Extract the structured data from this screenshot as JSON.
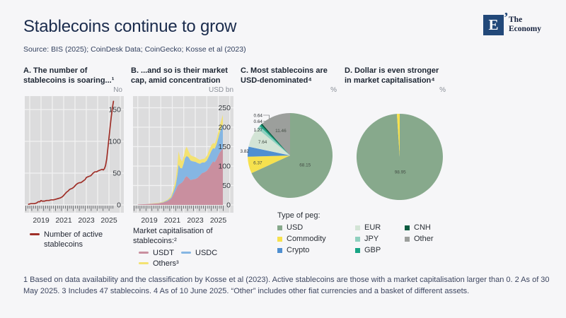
{
  "slide": {
    "title": "Stablecoins continue to grow",
    "source": "Source:  BIS (2025); CoinDesk Data; CoinGecko; Kosse et al (2023)",
    "footnote": "1 Based on data availability and the classification by Kosse et al (2023). Active stablecoins are those with a market capitalisation larger than 0. 2 As of 30 May 2025. 3 Includes 47 stablecoins. 4 As of 10 June 2025. “Other” includes other fiat currencies and a basket of different assets.",
    "logo": {
      "initial": "E",
      "tick_glyph": "’",
      "name_line1": "The",
      "name_line2": "Economy"
    }
  },
  "colors": {
    "background": "#f6f6f8",
    "plot_background": "#dcdcdd",
    "gridline": "#f2f2f3",
    "axis_text": "#33373d",
    "line_red": "#9f2f28",
    "usdt_pink": "#c98f9f",
    "usdc_blue": "#85b6e3",
    "others_yellow": "#f3e272",
    "usd_green": "#87a98c",
    "commodity_yellow": "#f6e14e",
    "crypto_blue": "#4f8fd0",
    "eur_pale": "#d3e4d6",
    "jpy_teal": "#8fd0bf",
    "gbp_green": "#18a585",
    "cnh_darkgreen": "#0c5b40",
    "other_gray": "#9c9f9c"
  },
  "chart_data": [
    {
      "id": "A",
      "type": "line",
      "title_line1": "A. The number of",
      "title_line2": "stablecoins is soaring...¹",
      "unit": "No",
      "x_ticks": [
        2019,
        2021,
        2023,
        2025
      ],
      "y_ticks": [
        0,
        50,
        100,
        150
      ],
      "ylim": [
        0,
        170
      ],
      "xlim": [
        2017.6,
        2025.6
      ],
      "legend": [
        {
          "label_line1": "Number of active",
          "label_line2": "stablecoins",
          "color": "#9f2f28"
        }
      ],
      "series": [
        {
          "name": "Number of active stablecoins",
          "color": "#9f2f28",
          "points": [
            [
              2017.9,
              1
            ],
            [
              2018.1,
              2
            ],
            [
              2018.4,
              2
            ],
            [
              2018.6,
              3
            ],
            [
              2018.75,
              5
            ],
            [
              2018.9,
              5
            ],
            [
              2019.0,
              7
            ],
            [
              2019.1,
              6
            ],
            [
              2019.3,
              6
            ],
            [
              2019.5,
              7
            ],
            [
              2019.7,
              7
            ],
            [
              2019.9,
              8
            ],
            [
              2020.1,
              8
            ],
            [
              2020.3,
              9
            ],
            [
              2020.5,
              10
            ],
            [
              2020.7,
              11
            ],
            [
              2020.9,
              13
            ],
            [
              2021.0,
              15
            ],
            [
              2021.1,
              17
            ],
            [
              2021.25,
              20
            ],
            [
              2021.4,
              22
            ],
            [
              2021.5,
              24
            ],
            [
              2021.6,
              25
            ],
            [
              2021.75,
              26
            ],
            [
              2021.9,
              28
            ],
            [
              2022.0,
              30
            ],
            [
              2022.1,
              32
            ],
            [
              2022.25,
              34
            ],
            [
              2022.4,
              35
            ],
            [
              2022.5,
              35
            ],
            [
              2022.6,
              36
            ],
            [
              2022.75,
              38
            ],
            [
              2022.9,
              40
            ],
            [
              2023.0,
              43
            ],
            [
              2023.1,
              44
            ],
            [
              2023.25,
              45
            ],
            [
              2023.4,
              46
            ],
            [
              2023.5,
              48
            ],
            [
              2023.6,
              50
            ],
            [
              2023.75,
              52
            ],
            [
              2023.9,
              52
            ],
            [
              2024.0,
              53
            ],
            [
              2024.1,
              54
            ],
            [
              2024.25,
              55
            ],
            [
              2024.4,
              56
            ],
            [
              2024.5,
              55
            ],
            [
              2024.6,
              57
            ],
            [
              2024.7,
              62
            ],
            [
              2024.8,
              72
            ],
            [
              2024.9,
              88
            ],
            [
              2025.0,
              105
            ],
            [
              2025.1,
              122
            ],
            [
              2025.2,
              138
            ],
            [
              2025.3,
              152
            ],
            [
              2025.4,
              163
            ]
          ]
        }
      ]
    },
    {
      "id": "B",
      "type": "area-stacked",
      "title_line1": "B. ...and so is their market",
      "title_line2": "cap, amid concentration",
      "unit": "USD bn",
      "x_ticks": [
        2019,
        2021,
        2023,
        2025
      ],
      "y_ticks": [
        0,
        50,
        100,
        150,
        200,
        250
      ],
      "ylim": [
        0,
        300
      ],
      "xlim": [
        2017.6,
        2025.6
      ],
      "legend_title_line1": "Market capitalisation of",
      "legend_title_line2": "stablecoins:²",
      "x": [
        2018.0,
        2018.7,
        2019.3,
        2019.8,
        2020.2,
        2020.6,
        2020.9,
        2021.1,
        2021.3,
        2021.45,
        2021.55,
        2021.7,
        2021.85,
        2022.0,
        2022.1,
        2022.25,
        2022.4,
        2022.6,
        2022.8,
        2023.0,
        2023.2,
        2023.4,
        2023.6,
        2023.8,
        2024.0,
        2024.2,
        2024.4,
        2024.55,
        2024.7,
        2024.85,
        2025.0,
        2025.15,
        2025.3,
        2025.4
      ],
      "series": [
        {
          "name": "USDT",
          "color": "#c98f9f",
          "values": [
            1,
            2,
            3,
            4,
            6,
            10,
            16,
            26,
            38,
            48,
            52,
            55,
            58,
            64,
            70,
            74,
            70,
            64,
            66,
            67,
            70,
            76,
            82,
            84,
            88,
            96,
            106,
            112,
            110,
            118,
            128,
            136,
            142,
            145
          ]
        },
        {
          "name": "USDC",
          "color": "#85b6e3",
          "values": [
            0,
            0,
            0.4,
            0.6,
            1,
            2,
            3,
            7,
            13,
            30,
            52,
            40,
            36,
            44,
            50,
            52,
            53,
            50,
            46,
            44,
            38,
            30,
            27,
            25,
            26,
            30,
            33,
            34,
            35,
            38,
            44,
            52,
            58,
            62
          ]
        },
        {
          "name": "Others³",
          "color": "#f3e272",
          "values": [
            0,
            0,
            0.6,
            0.8,
            1.2,
            2,
            4,
            8,
            14,
            26,
            34,
            24,
            18,
            18,
            20,
            24,
            16,
            14,
            13,
            12,
            11,
            10,
            9,
            10,
            12,
            14,
            15,
            13,
            13,
            14,
            16,
            18,
            22,
            25
          ]
        }
      ]
    },
    {
      "id": "C",
      "type": "pie",
      "title_line1": "C. Most stablecoins are",
      "title_line2": "USD-denominated⁴",
      "unit": "%",
      "slices": [
        {
          "name": "USD",
          "value": 68.15,
          "color": "#87a98c",
          "labeled": true
        },
        {
          "name": "Commodity",
          "value": 6.37,
          "color": "#f6e14e",
          "labeled": true
        },
        {
          "name": "Crypto",
          "value": 3.82,
          "color": "#4f8fd0",
          "labeled": true
        },
        {
          "name": "EUR",
          "value": 7.64,
          "color": "#d3e4d6",
          "labeled": true
        },
        {
          "name": "JPY",
          "value": 1.27,
          "color": "#8fd0bf",
          "labeled": true
        },
        {
          "name": "GBP",
          "value": 0.64,
          "color": "#18a585",
          "labeled": true
        },
        {
          "name": "CNH",
          "value": 0.64,
          "color": "#0c5b40",
          "labeled": true
        },
        {
          "name": "Other",
          "value": 11.46,
          "color": "#9c9f9c",
          "labeled": true
        }
      ]
    },
    {
      "id": "D",
      "type": "pie",
      "title_line1": "D. Dollar is even stronger",
      "title_line2": "in market capitalisation⁴",
      "unit": "%",
      "slices": [
        {
          "name": "USD",
          "value": 98.95,
          "color": "#87a98c",
          "labeled": true
        },
        {
          "name": "Commodity",
          "value": 1.05,
          "color": "#f6e14e",
          "labeled": false
        }
      ]
    }
  ],
  "peg_legend": {
    "title": "Type of peg:",
    "columns": [
      [
        {
          "label": "USD",
          "color": "#87a98c"
        },
        {
          "label": "Commodity",
          "color": "#f6e14e"
        },
        {
          "label": "Crypto",
          "color": "#4f8fd0"
        }
      ],
      [
        {
          "label": "EUR",
          "color": "#d3e4d6"
        },
        {
          "label": "JPY",
          "color": "#8fd0bf"
        },
        {
          "label": "GBP",
          "color": "#18a585"
        }
      ],
      [
        {
          "label": "CNH",
          "color": "#0c5b40"
        },
        {
          "label": "Other",
          "color": "#9c9f9c"
        }
      ]
    ]
  }
}
